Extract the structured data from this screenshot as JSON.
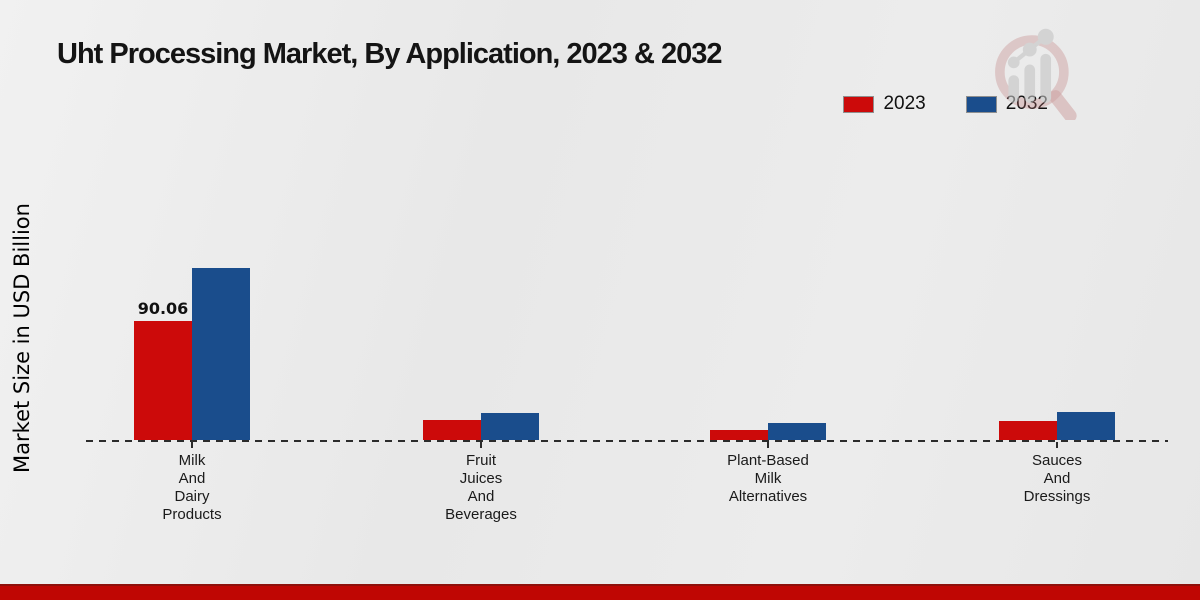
{
  "title": "Uht Processing Market, By Application, 2023 & 2032",
  "y_axis_label": "Market Size in USD Billion",
  "legend": {
    "items": [
      {
        "label": "2023",
        "color": "#cc0a0a"
      },
      {
        "label": "2032",
        "color": "#1a4d8c"
      }
    ]
  },
  "branding": {
    "logo_icon": "magnifier-growth-chart-watermark"
  },
  "colors": {
    "series_2023": "#cc0a0a",
    "series_2032": "#1a4d8c",
    "footer_strip": "#bf0603",
    "background": "#eaeaea"
  },
  "chart_data": {
    "type": "bar",
    "title": "Uht Processing Market, By Application, 2023 & 2032",
    "xlabel": "",
    "ylabel": "Market Size in USD Billion",
    "categories": [
      "Milk And Dairy Products",
      "Fruit Juices And Beverages",
      "Plant-Based Milk Alternatives",
      "Sauces And Dressings"
    ],
    "series": [
      {
        "name": "2023",
        "color": "#cc0a0a",
        "values": [
          90.06,
          15.0,
          7.5,
          14.5
        ]
      },
      {
        "name": "2032",
        "color": "#1a4d8c",
        "values": [
          130.5,
          20.5,
          13.0,
          21.0
        ]
      }
    ],
    "value_labels": [
      {
        "series": "2023",
        "category_index": 0,
        "text": "90.06"
      }
    ],
    "ylim": [
      0,
      140
    ],
    "grid": false,
    "legend_position": "top-right",
    "baseline_style": "dashed"
  }
}
